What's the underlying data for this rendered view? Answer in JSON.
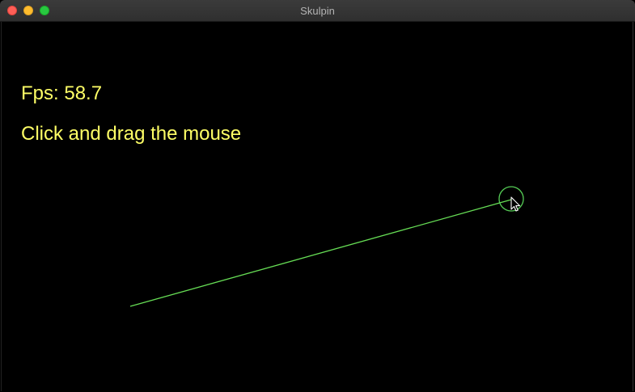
{
  "window": {
    "title": "Skulpin"
  },
  "overlay": {
    "fps_label": "Fps: 58.7",
    "instructions": "Click and drag the mouse"
  },
  "colors": {
    "text": "#ffff66",
    "line": "#66dd55",
    "circle": "#55cc55",
    "background": "#000000"
  },
  "icons": {
    "cursor": "arrow-cursor-icon"
  }
}
